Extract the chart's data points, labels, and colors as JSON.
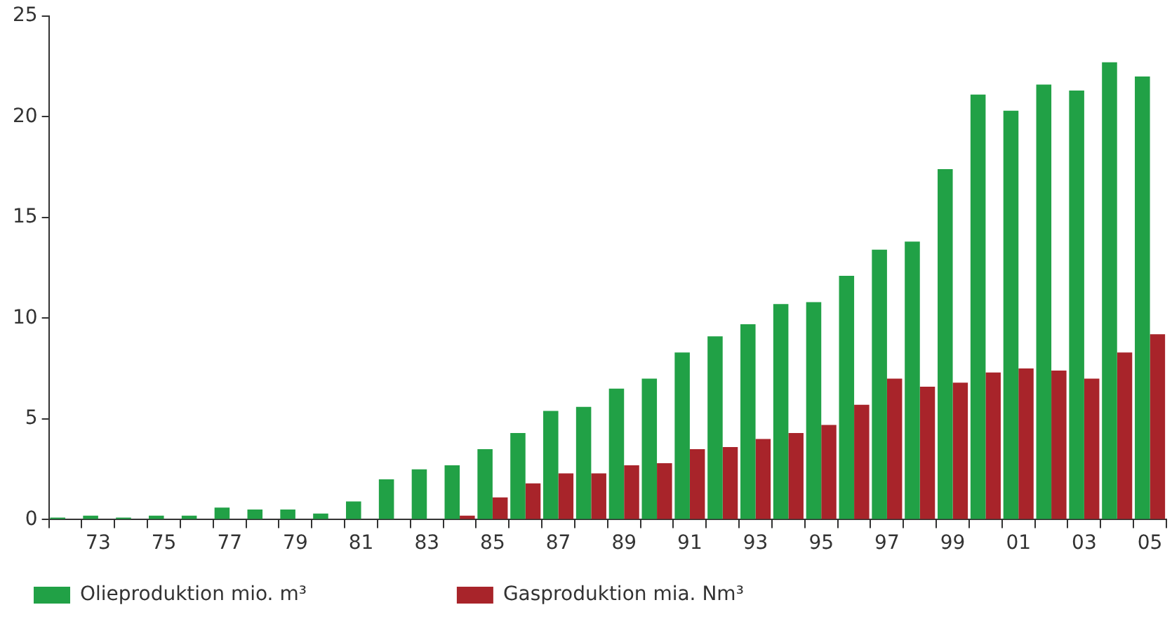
{
  "chart_data": {
    "type": "bar",
    "categories": [
      null,
      "73",
      null,
      "75",
      null,
      "77",
      null,
      "79",
      null,
      "81",
      null,
      "83",
      null,
      "85",
      null,
      "87",
      null,
      "89",
      null,
      "91",
      null,
      "93",
      null,
      "95",
      null,
      "97",
      null,
      "99",
      null,
      "01",
      null,
      "03",
      null,
      "05"
    ],
    "series": [
      {
        "name": "Olieproduktion mio. m³",
        "color": "#21a146",
        "values": [
          0.1,
          0.2,
          0.1,
          0.2,
          0.2,
          0.6,
          0.5,
          0.5,
          0.3,
          0.9,
          2.0,
          2.5,
          2.7,
          3.5,
          4.3,
          5.4,
          5.6,
          6.5,
          7.0,
          8.3,
          9.1,
          9.7,
          10.7,
          10.8,
          12.1,
          13.4,
          13.8,
          17.4,
          21.1,
          20.3,
          21.6,
          21.3,
          22.7,
          22.0
        ]
      },
      {
        "name": "Gasproduktion mia. Nm³",
        "color": "#a8242a",
        "values": [
          null,
          null,
          null,
          null,
          null,
          null,
          null,
          null,
          null,
          null,
          null,
          null,
          0.2,
          1.1,
          1.8,
          2.3,
          2.3,
          2.7,
          2.8,
          3.5,
          3.6,
          4.0,
          4.3,
          4.7,
          5.7,
          7.0,
          6.6,
          6.8,
          7.3,
          7.5,
          7.4,
          7.0,
          8.3,
          9.2
        ]
      }
    ],
    "ylim": [
      0,
      25
    ],
    "yticks": [
      0,
      5,
      10,
      15,
      20,
      25
    ],
    "grid": false,
    "legend": "bottom left"
  }
}
